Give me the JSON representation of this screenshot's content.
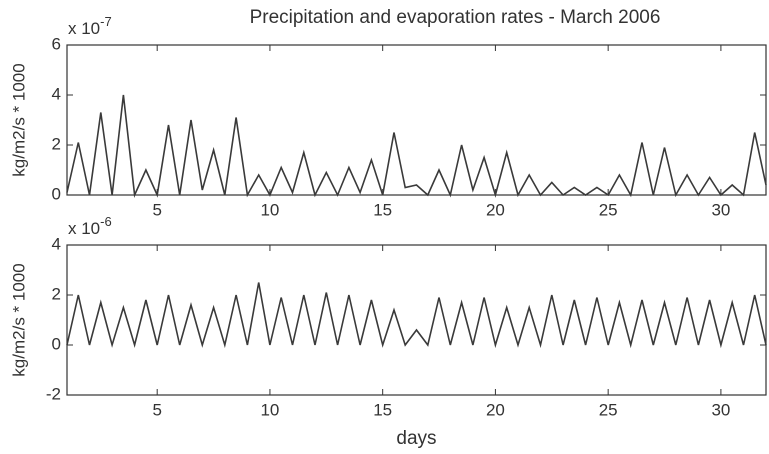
{
  "chart_data": [
    {
      "type": "line",
      "title": "Precipitation and evaporation rates - March 2006",
      "ylabel": "kg/m2/s * 1000",
      "y_offset_base": "x 10",
      "y_offset_exponent": "-7",
      "color": "#3a3a3a",
      "x": [
        1,
        1.5,
        2,
        2.5,
        3,
        3.5,
        4,
        4.5,
        5,
        5.5,
        6,
        6.5,
        7,
        7.5,
        8,
        8.5,
        9,
        9.5,
        10,
        10.5,
        11,
        11.5,
        12,
        12.5,
        13,
        13.5,
        14,
        14.5,
        15,
        15.5,
        16,
        16.5,
        17,
        17.5,
        18,
        18.5,
        19,
        19.5,
        20,
        20.5,
        21,
        21.5,
        22,
        22.5,
        23,
        23.5,
        24,
        24.5,
        25,
        25.5,
        26,
        26.5,
        27,
        27.5,
        28,
        28.5,
        29,
        29.5,
        30,
        30.5,
        31,
        31.5,
        32
      ],
      "values": [
        0.1,
        2.1,
        0,
        3.3,
        0,
        4.0,
        0,
        1.0,
        0,
        2.8,
        0,
        3.0,
        0.2,
        1.8,
        0,
        3.1,
        0,
        0.8,
        0,
        1.1,
        0.1,
        1.7,
        0,
        0.9,
        0,
        1.1,
        0.1,
        1.4,
        0,
        2.5,
        0.3,
        0.4,
        0,
        1.0,
        0,
        2.0,
        0.2,
        1.5,
        0,
        1.7,
        0,
        0.8,
        0,
        0.5,
        0,
        0.3,
        0,
        0.3,
        0,
        0.8,
        0,
        2.1,
        0,
        1.9,
        0,
        0.8,
        0,
        0.7,
        0,
        0.4,
        0,
        2.5,
        0.4
      ],
      "xlim": [
        1,
        32
      ],
      "ylim": [
        0,
        6
      ],
      "xticks": [
        5,
        10,
        15,
        20,
        25,
        30
      ],
      "yticks": [
        0,
        2,
        4,
        6
      ]
    },
    {
      "type": "line",
      "ylabel": "kg/m2/s * 1000",
      "xlabel": "days",
      "y_offset_base": "x 10",
      "y_offset_exponent": "-6",
      "color": "#3a3a3a",
      "x": [
        1,
        1.5,
        2,
        2.5,
        3,
        3.5,
        4,
        4.5,
        5,
        5.5,
        6,
        6.5,
        7,
        7.5,
        8,
        8.5,
        9,
        9.5,
        10,
        10.5,
        11,
        11.5,
        12,
        12.5,
        13,
        13.5,
        14,
        14.5,
        15,
        15.5,
        16,
        16.5,
        17,
        17.5,
        18,
        18.5,
        19,
        19.5,
        20,
        20.5,
        21,
        21.5,
        22,
        22.5,
        23,
        23.5,
        24,
        24.5,
        25,
        25.5,
        26,
        26.5,
        27,
        27.5,
        28,
        28.5,
        29,
        29.5,
        30,
        30.5,
        31,
        31.5,
        32
      ],
      "values": [
        0,
        2.0,
        0,
        1.7,
        0,
        1.5,
        0,
        1.8,
        0,
        2.0,
        0,
        1.6,
        0,
        1.5,
        0,
        2.0,
        0,
        2.5,
        0,
        1.9,
        0,
        2.0,
        0,
        2.1,
        0,
        2.0,
        0,
        1.8,
        0,
        1.4,
        0,
        0.6,
        0,
        1.9,
        0,
        1.7,
        0,
        1.9,
        0,
        1.5,
        0,
        1.5,
        0,
        2.0,
        0,
        1.8,
        0,
        1.9,
        0,
        1.7,
        0,
        1.8,
        0,
        1.7,
        0,
        1.9,
        0,
        1.8,
        0,
        1.7,
        0,
        2.0,
        0
      ],
      "xlim": [
        1,
        32
      ],
      "ylim": [
        -2,
        4
      ],
      "xticks": [
        5,
        10,
        15,
        20,
        25,
        30
      ],
      "yticks": [
        -2,
        0,
        2,
        4
      ]
    }
  ]
}
